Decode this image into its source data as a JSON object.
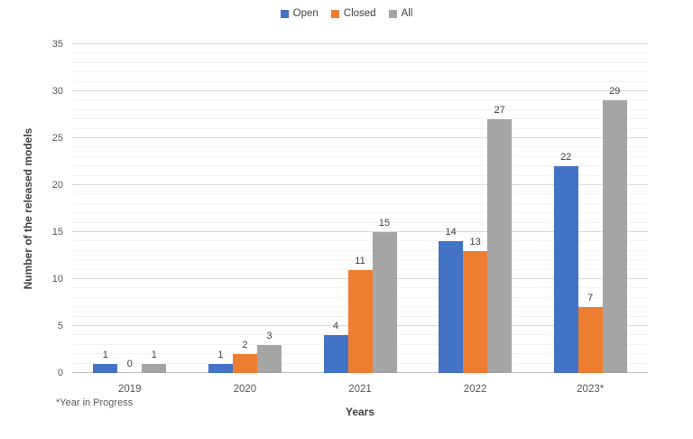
{
  "chart_data": {
    "type": "bar",
    "title": "",
    "categories": [
      "2019",
      "2020",
      "2021",
      "2022",
      "2023*"
    ],
    "series": [
      {
        "name": "Open",
        "color": "#4472C4",
        "values": [
          1,
          1,
          4,
          14,
          22
        ]
      },
      {
        "name": "Closed",
        "color": "#ED7D31",
        "values": [
          0,
          2,
          11,
          13,
          7
        ]
      },
      {
        "name": "All",
        "color": "#A5A5A5",
        "values": [
          1,
          3,
          15,
          27,
          29
        ]
      }
    ],
    "xlabel": "Years",
    "ylabel": "Number of the released models",
    "ylim": [
      0,
      35
    ],
    "y_major_step": 5,
    "y_minor_step": 1,
    "y_tick_labels": [
      "0",
      "5",
      "10",
      "15",
      "20",
      "25",
      "30",
      "35"
    ],
    "footnote": "*Year in Progress",
    "legend_position": "top",
    "grid": "on"
  },
  "palette": {
    "background": "#FFFFFF",
    "major_gridline": "#D9D9D9",
    "minor_gridline": "#F3F3F3",
    "axis_line": "#BFBFBF",
    "tick_label": "#595959",
    "value_label": "#404040",
    "axis_title": "#404040",
    "legend_text": "#404040"
  }
}
